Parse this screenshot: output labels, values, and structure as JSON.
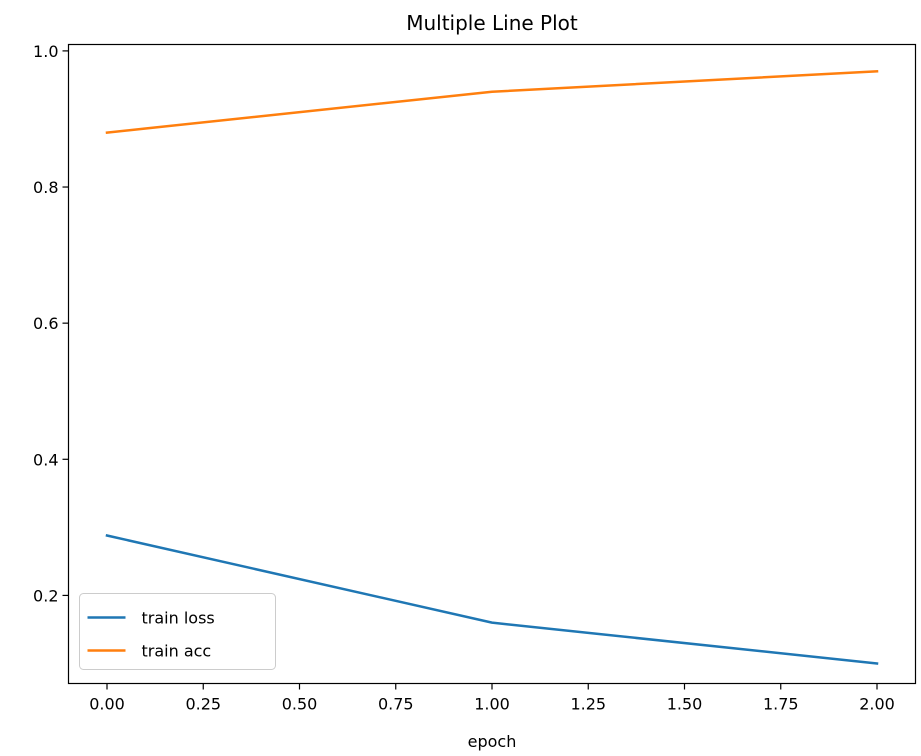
{
  "chart_data": {
    "type": "line",
    "title": "Multiple Line Plot",
    "xlabel": "epoch",
    "ylabel": "",
    "x": [
      0,
      1,
      2
    ],
    "series": [
      {
        "name": "train loss",
        "values": [
          0.288,
          0.16,
          0.1
        ],
        "color": "#1f77b4"
      },
      {
        "name": "train acc",
        "values": [
          0.88,
          0.94,
          0.97
        ],
        "color": "#ff7f0e"
      }
    ],
    "xlim": [
      -0.1,
      2.1
    ],
    "ylim": [
      0.0706,
      1.0094
    ],
    "xticks": [
      0,
      0.25,
      0.5,
      0.75,
      1,
      1.25,
      1.5,
      1.75,
      2
    ],
    "xtick_labels": [
      "0.00",
      "0.25",
      "0.50",
      "0.75",
      "1.00",
      "1.25",
      "1.50",
      "1.75",
      "2.00"
    ],
    "yticks": [
      0.2,
      0.4,
      0.6,
      0.8,
      1.0
    ],
    "ytick_labels": [
      "0.2",
      "0.4",
      "0.6",
      "0.8",
      "1.0"
    ],
    "grid": false,
    "legend_position": "lower-left"
  }
}
